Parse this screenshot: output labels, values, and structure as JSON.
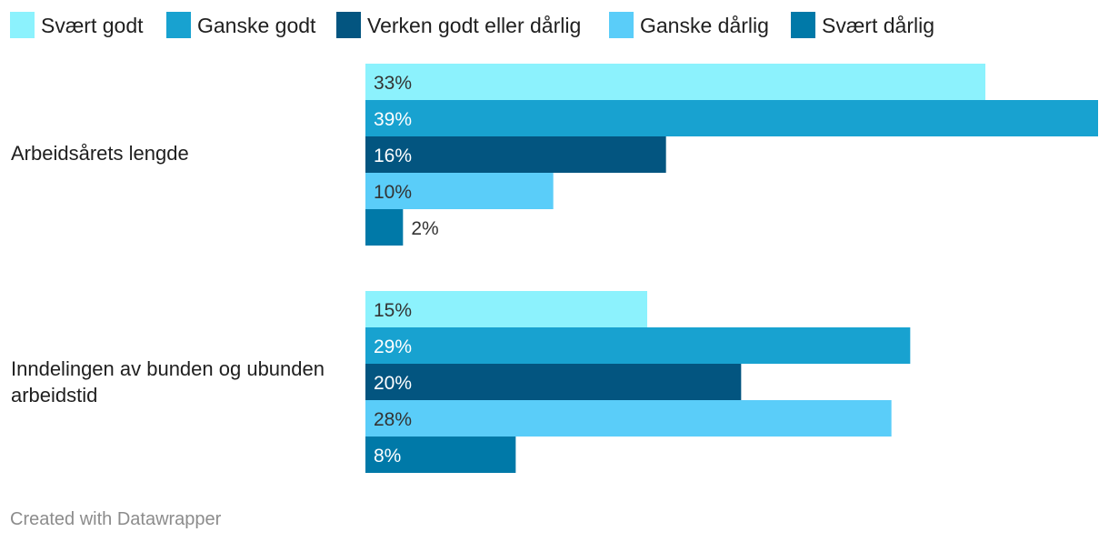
{
  "chart_data": {
    "type": "bar",
    "orientation": "horizontal",
    "categories": [
      [
        "Arbeidsårets lengde"
      ],
      [
        "Inndelingen av bunden og ubunden",
        "arbeidstid"
      ]
    ],
    "series": [
      {
        "name": "Svært godt",
        "color": "#8cf2fd",
        "label_color": "#333333",
        "values": [
          33,
          15
        ],
        "labels": [
          "33%",
          "15%"
        ]
      },
      {
        "name": "Ganske godt",
        "color": "#18a2d0",
        "label_color": "#ffffff",
        "values": [
          39,
          29
        ],
        "labels": [
          "39%",
          "29%"
        ]
      },
      {
        "name": "Verken godt eller dårlig",
        "color": "#035580",
        "label_color": "#ffffff",
        "values": [
          16,
          20
        ],
        "labels": [
          "16%",
          "20%"
        ]
      },
      {
        "name": "Ganske dårlig",
        "color": "#5acdf9",
        "label_color": "#333333",
        "values": [
          10,
          28
        ],
        "labels": [
          "10%",
          "28%"
        ]
      },
      {
        "name": "Svært dårlig",
        "color": "#0079a8",
        "label_color": "#ffffff",
        "values": [
          2,
          8
        ],
        "labels": [
          "2%",
          "8%"
        ]
      }
    ],
    "xlim": [
      0,
      39
    ],
    "legend_position": "top-left",
    "value_format": "percent"
  },
  "footer": {
    "credit": "Created with Datawrapper"
  }
}
